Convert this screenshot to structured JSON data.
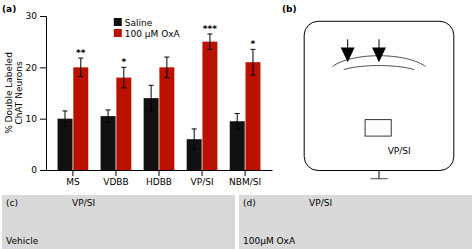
{
  "chart_data": {
    "type": "bar",
    "categories": [
      "MS",
      "VDBB",
      "HDBB",
      "VP/SI",
      "NBM/SI"
    ],
    "series": [
      {
        "name": "Saline",
        "color": "#111111",
        "values": [
          10.0,
          10.5,
          14.0,
          6.0,
          9.5
        ],
        "errors": [
          1.5,
          1.2,
          2.5,
          2.0,
          1.5
        ]
      },
      {
        "name": "100 μM OxA",
        "color": "#bb1100",
        "values": [
          20.0,
          18.0,
          20.0,
          25.0,
          21.0
        ],
        "errors": [
          1.8,
          2.0,
          2.0,
          1.5,
          2.5
        ],
        "significance": [
          "**",
          "*",
          null,
          "***",
          "*"
        ]
      }
    ],
    "ylabel": "% Double Labeled\nChAT Neurons",
    "ylim": [
      0,
      30
    ],
    "yticks": [
      0,
      10,
      20,
      30
    ],
    "legend": "upper left",
    "annotations": [
      "(a)",
      "(b)",
      "VP/SI",
      "(c)",
      "(d)",
      "VP/SI",
      "Vehicle",
      "VP/SI",
      "100μM OxA"
    ]
  }
}
